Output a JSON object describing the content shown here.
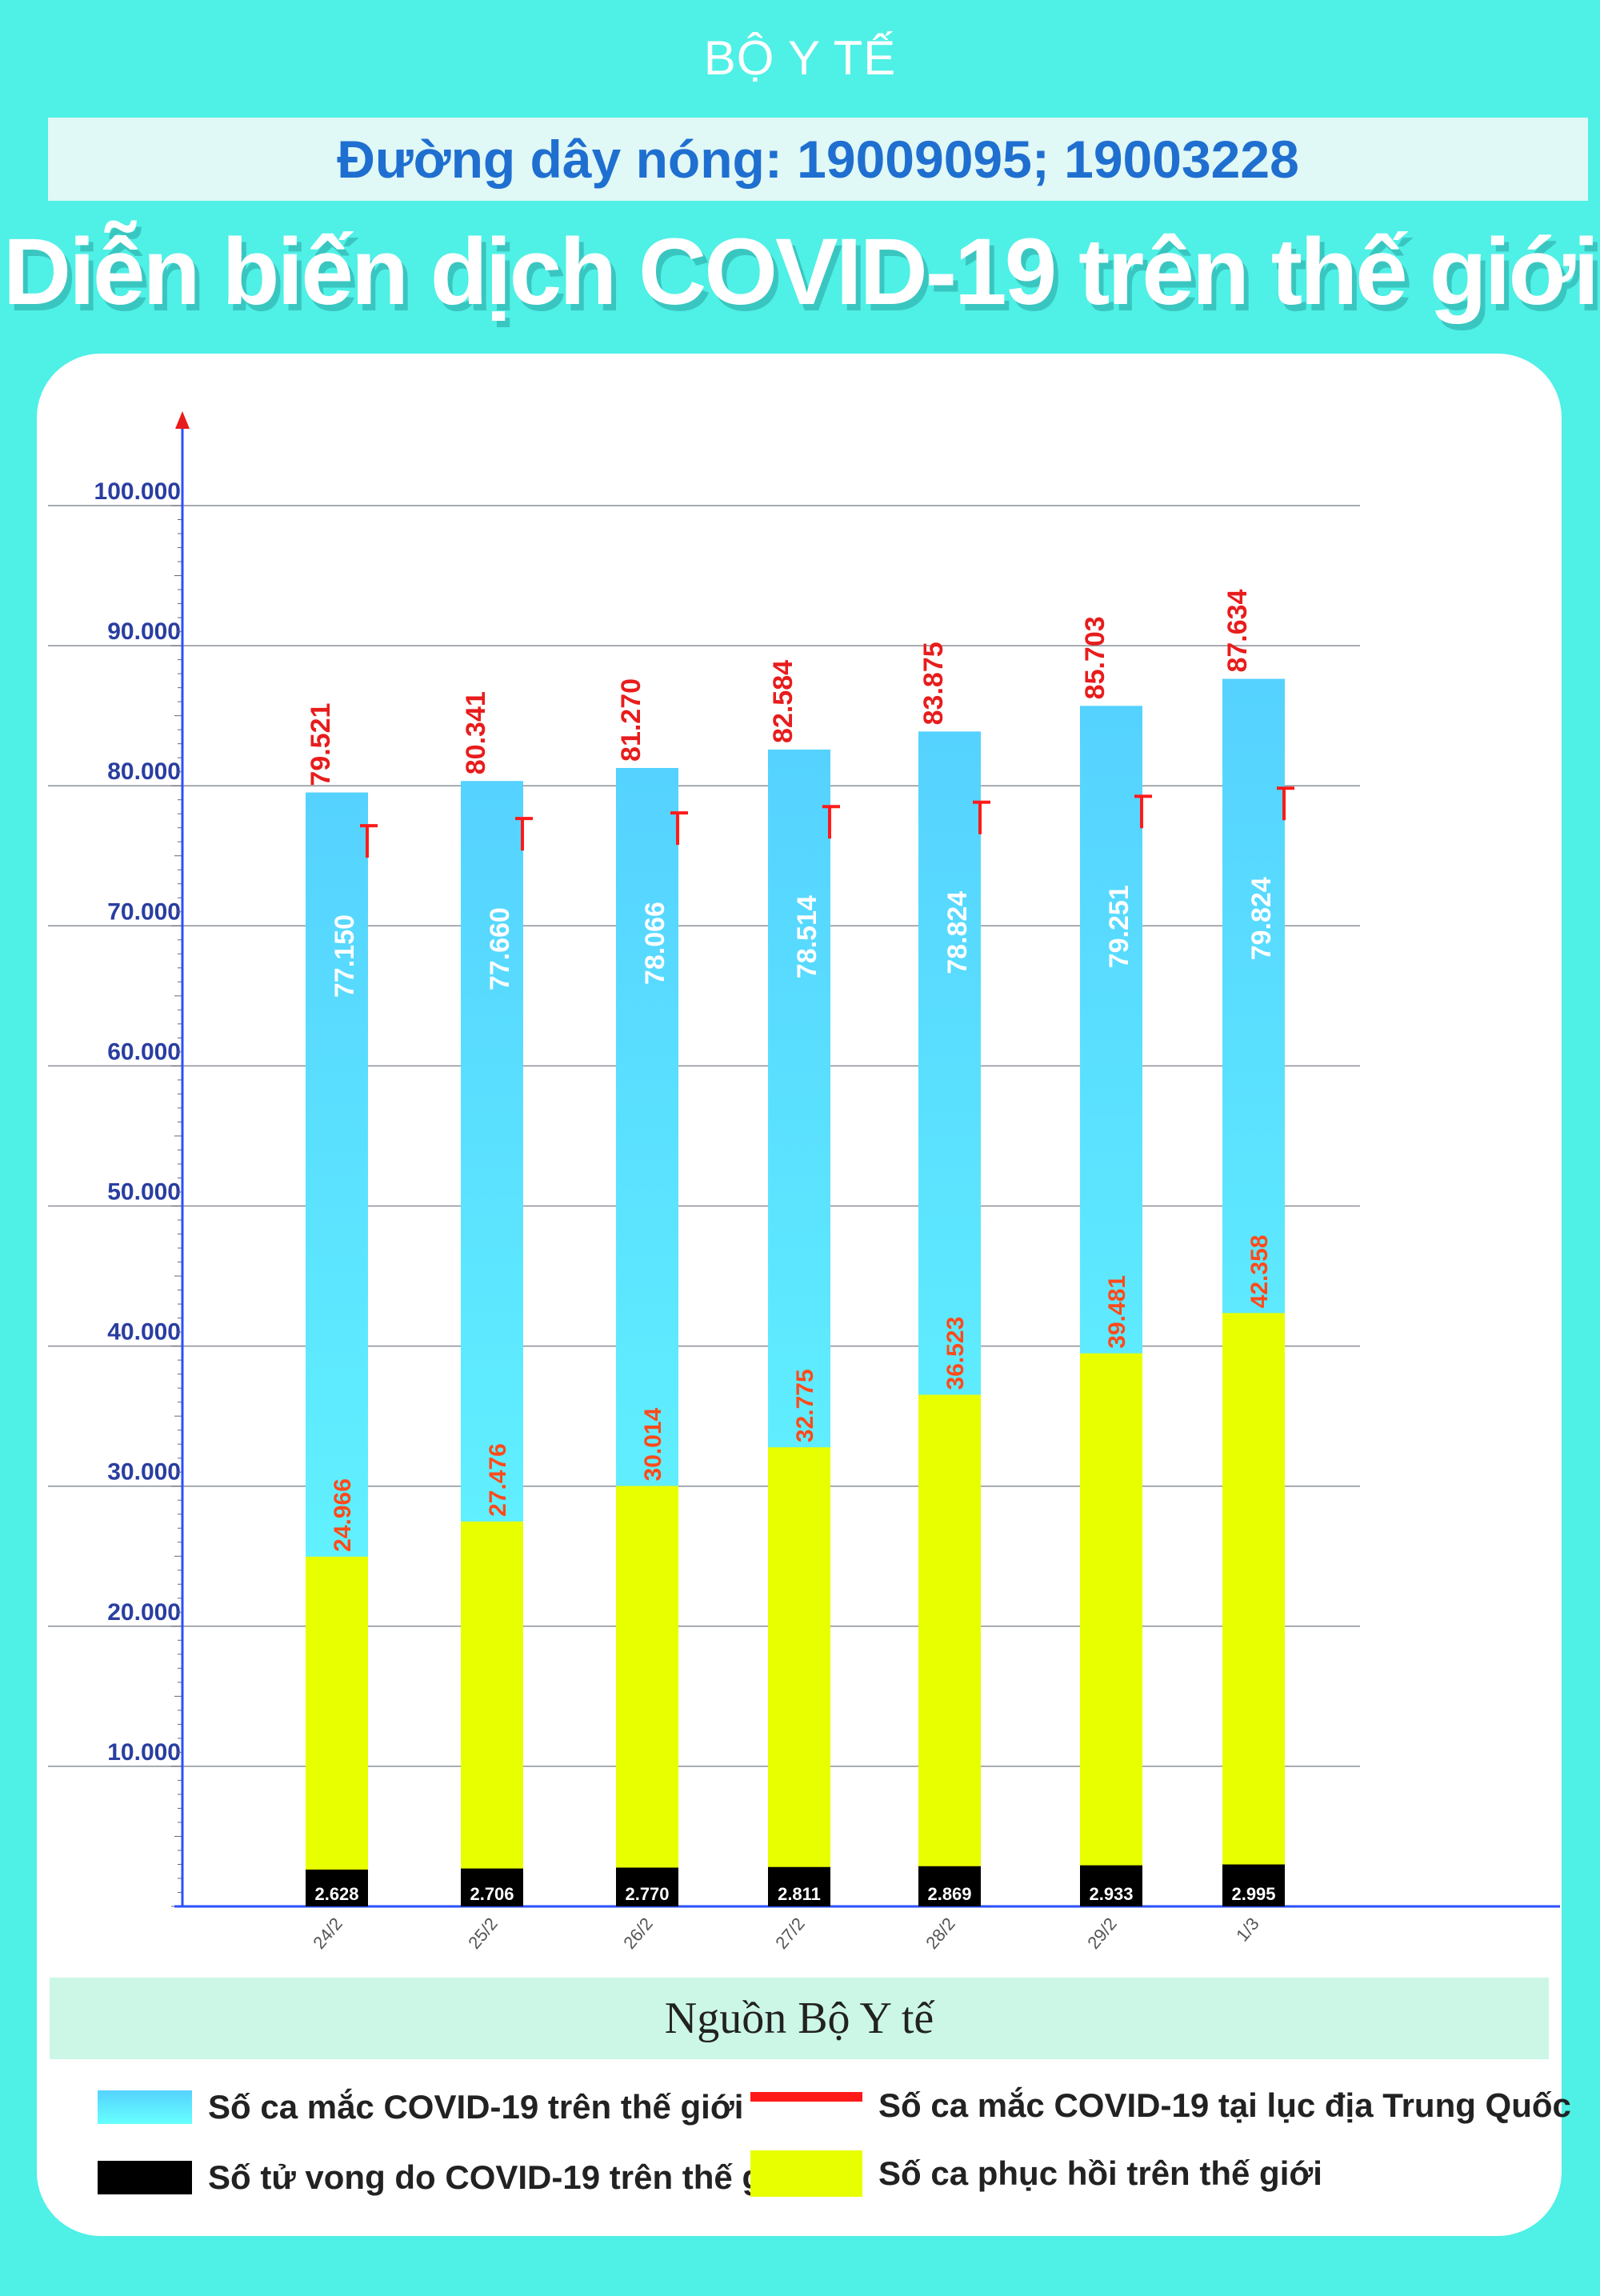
{
  "header": {
    "org": "BỘ Y TẾ",
    "hotline": "Đường dây nóng: 19009095; 19003228",
    "title": "Diễn biến  dịch COVID-19 trên thế giới"
  },
  "source": "Nguồn Bộ Y tế",
  "colors": {
    "background": "#4ff0e6",
    "cases": "#5ce8ff",
    "china": "#ff1a1a",
    "deaths": "#000000",
    "recovered": "#e8ff00",
    "value_red": "#e81c1c",
    "value_orange": "#ff4a1a",
    "axis": "#2a50ff",
    "axis_label": "#2a3ea0"
  },
  "legend": [
    {
      "key": "cases",
      "label": "Số ca mắc COVID-19 trên thế giới",
      "icon": "gradient-swatch"
    },
    {
      "key": "china",
      "label": "Số ca mắc COVID-19 tại  lục địa Trung Quốc",
      "icon": "red-line"
    },
    {
      "key": "deaths",
      "label": "Số tử vong do COVID-19 trên thế giới",
      "icon": "black-swatch"
    },
    {
      "key": "recovered",
      "label": "Số ca phục hồi trên thế giới",
      "icon": "yellow-swatch"
    }
  ],
  "chart_data": {
    "type": "bar",
    "title": "Diễn biến  dịch COVID-19 trên thế giới",
    "categories": [
      "24/2",
      "25/2",
      "26/2",
      "27/2",
      "28/2",
      "29/2",
      "1/3"
    ],
    "ylim": [
      0,
      100000
    ],
    "y_ticks": [
      "10.000",
      "20.000",
      "30.000",
      "40.000",
      "50.000",
      "60.000",
      "70.000",
      "80.000",
      "90.000",
      "100.000"
    ],
    "y_tick_values": [
      10000,
      20000,
      30000,
      40000,
      50000,
      60000,
      70000,
      80000,
      90000,
      100000
    ],
    "grid": true,
    "legend_position": "bottom",
    "series": [
      {
        "name": "Số ca mắc COVID-19 trên thế giới",
        "values": [
          79521,
          80341,
          81270,
          82584,
          83875,
          85703,
          87634
        ],
        "labels": [
          "79.521",
          "80.341",
          "81.270",
          "82.584",
          "83.875",
          "85.703",
          "87.634"
        ]
      },
      {
        "name": "Số ca mắc COVID-19 tại  lục địa Trung Quốc",
        "values": [
          77150,
          77660,
          78066,
          78514,
          78824,
          79251,
          79824
        ],
        "labels": [
          "77.150",
          "77.660",
          "78.066",
          "78.514",
          "78.824",
          "79.251",
          "79.824"
        ]
      },
      {
        "name": "Số ca phục hồi trên thế giới",
        "values": [
          24966,
          27476,
          30014,
          32775,
          36523,
          39481,
          42358
        ],
        "labels": [
          "24.966",
          "27.476",
          "30.014",
          "32.775",
          "36.523",
          "39.481",
          "42.358"
        ]
      },
      {
        "name": "Số tử vong do COVID-19 trên thế giới",
        "values": [
          2628,
          2706,
          2770,
          2811,
          2869,
          2933,
          2995
        ],
        "labels": [
          "2.628",
          "2.706",
          "2.770",
          "2.811",
          "2.869",
          "2.933",
          "2.995"
        ]
      }
    ]
  }
}
